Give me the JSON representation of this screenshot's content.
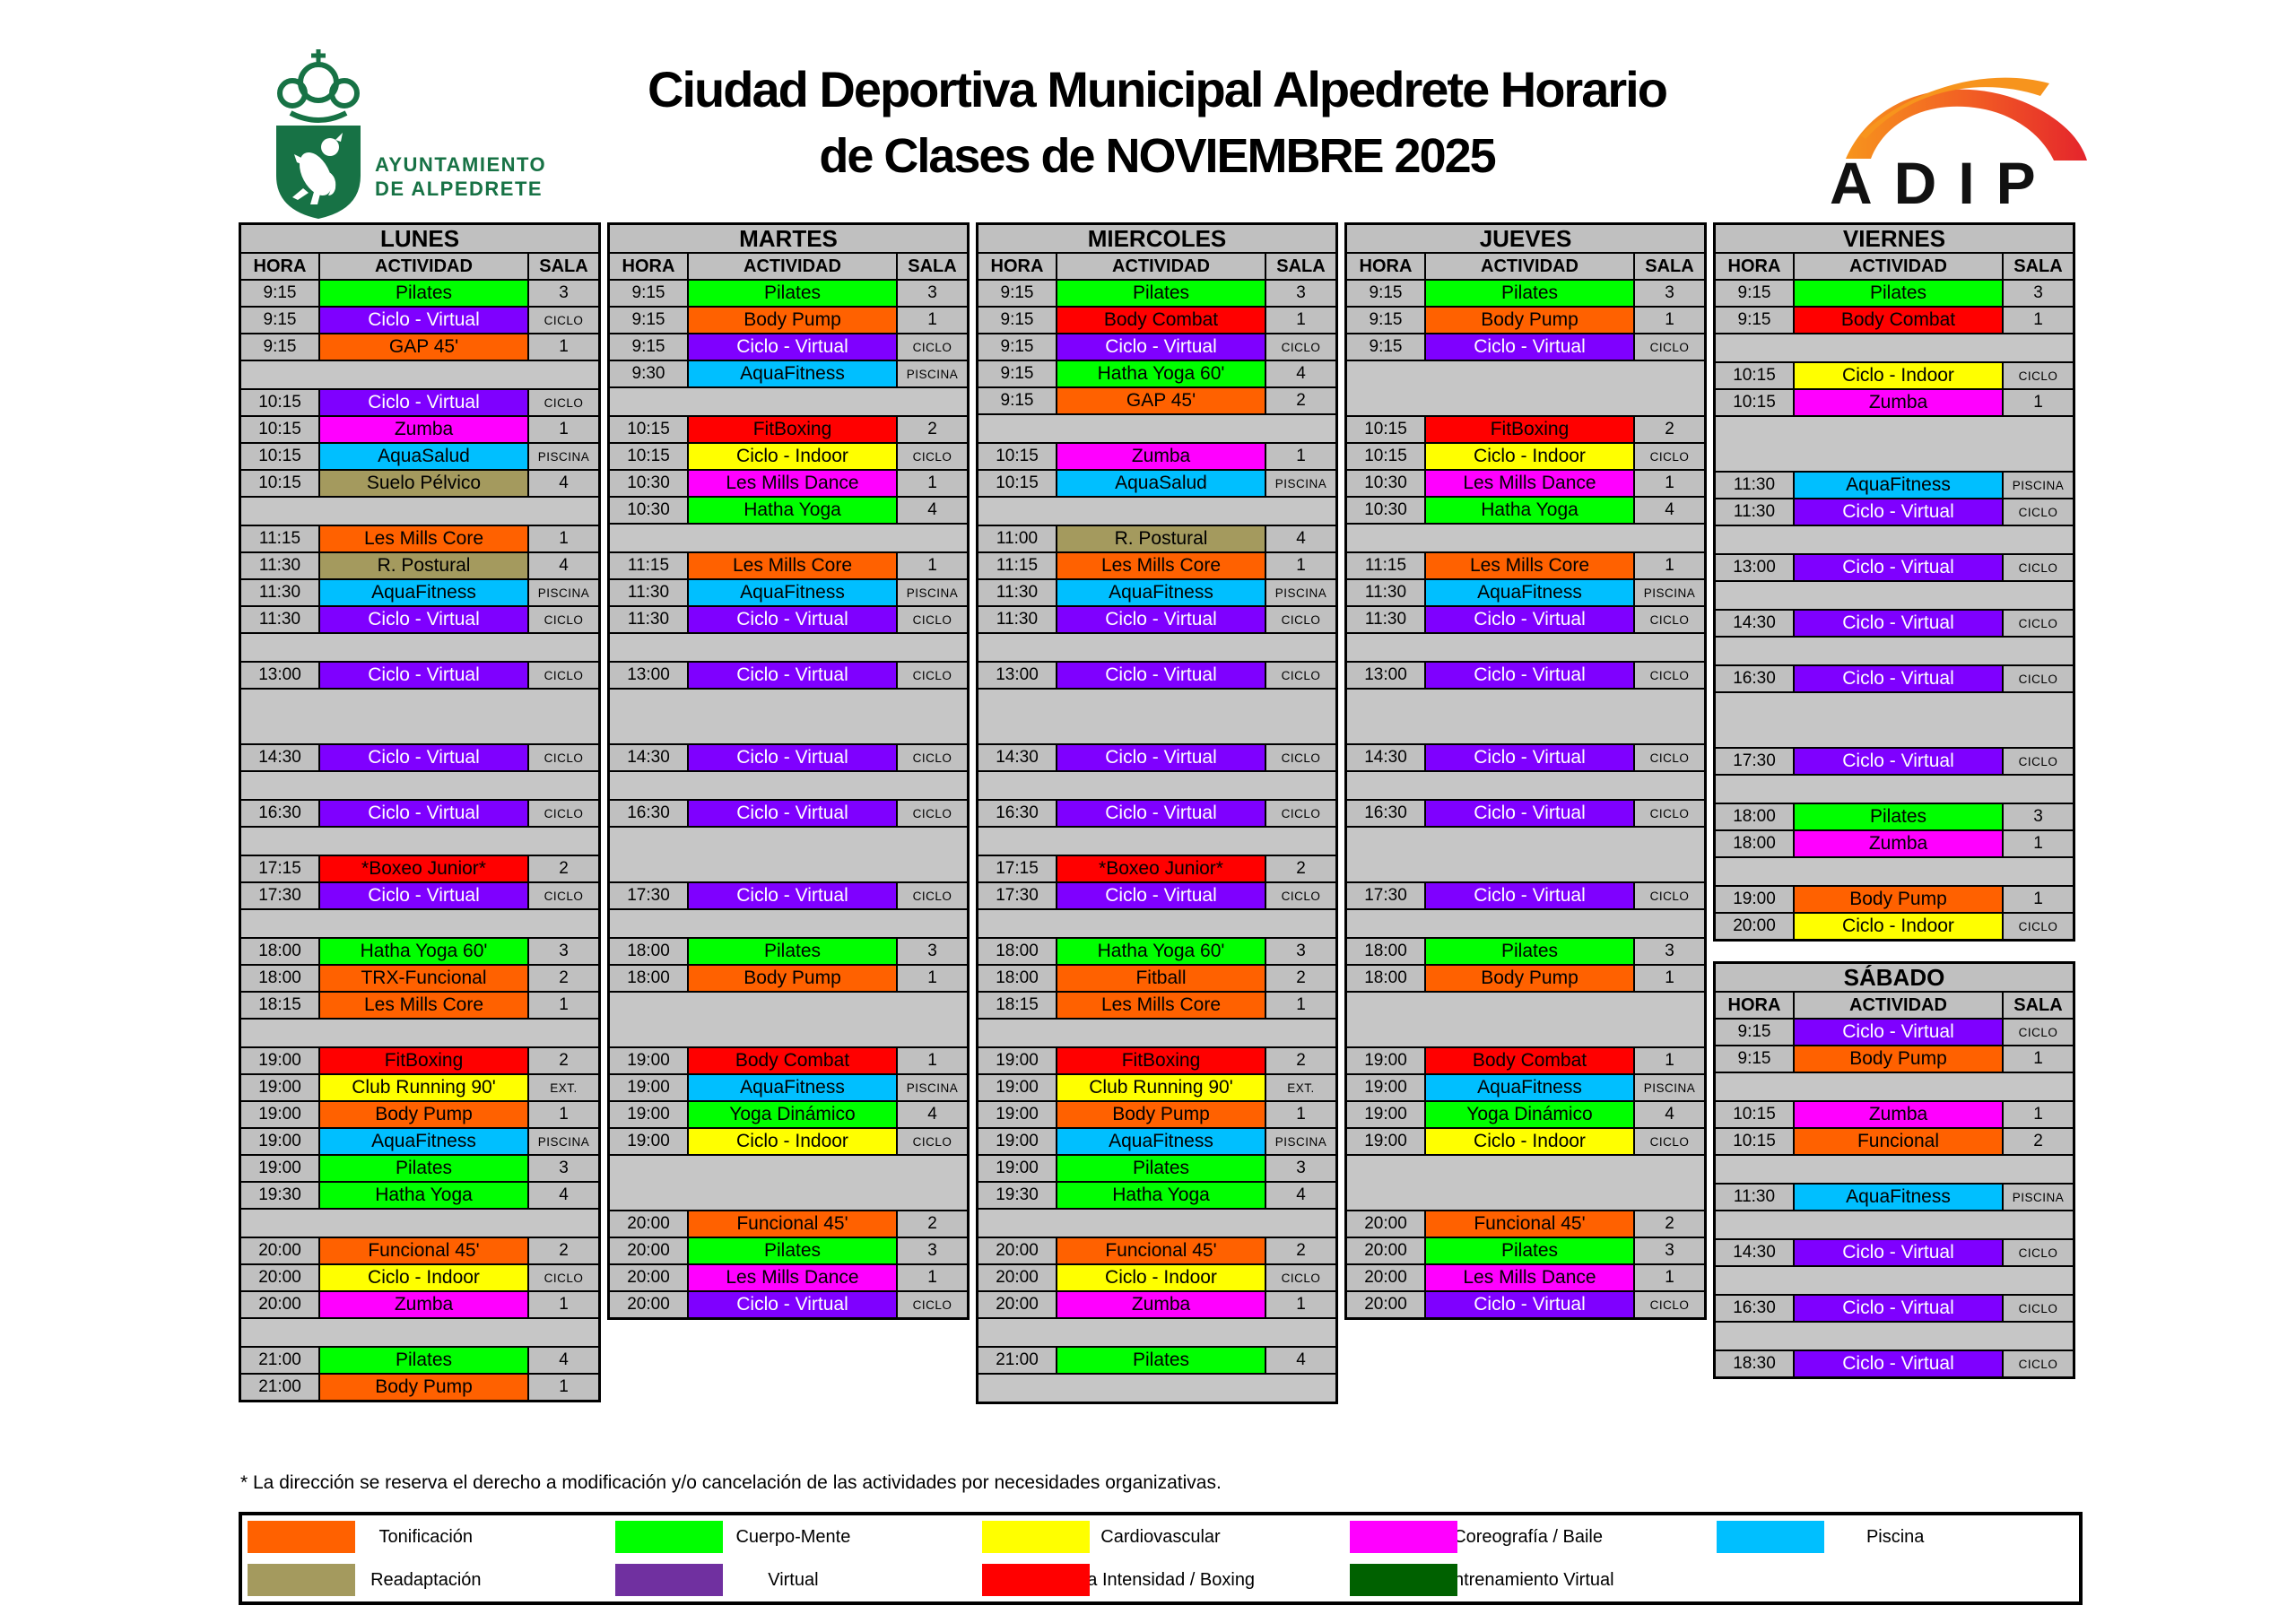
{
  "header": {
    "title_line1": "Ciudad Deportiva Municipal Alpedrete Horario",
    "title_line2": "de Clases de NOVIEMBRE 2025",
    "municipality_line1": "AYUNTAMIENTO",
    "municipality_line2": "DE ALPEDRETE",
    "adip_label": "ADIP"
  },
  "columns": {
    "hora": "HORA",
    "actividad": "ACTIVIDAD",
    "sala": "SALA"
  },
  "colors": {
    "green": "#00FF00",
    "orange": "#FF6100",
    "red": "#FF0000",
    "yellow": "#FFFF00",
    "magenta": "#FF00FF",
    "cyan": "#00BFFF",
    "purple": "#7F00FF",
    "khaki": "#A49A5E",
    "cell_gray": "#C0C0C0",
    "brand_green": "#177245",
    "legend_purple": "#7030A0",
    "legend_darkgreen": "#006100"
  },
  "days": [
    {
      "name": "LUNES",
      "rows": [
        {
          "t": "9:15",
          "a": "Pilates",
          "s": "3",
          "c": "green"
        },
        {
          "t": "9:15",
          "a": "Ciclo - Virtual",
          "s": "CICLO",
          "c": "purple"
        },
        {
          "t": "9:15",
          "a": "GAP 45'",
          "s": "1",
          "c": "orange"
        },
        {
          "g": 1
        },
        {
          "t": "10:15",
          "a": "Ciclo - Virtual",
          "s": "CICLO",
          "c": "purple"
        },
        {
          "t": "10:15",
          "a": "Zumba",
          "s": "1",
          "c": "magenta"
        },
        {
          "t": "10:15",
          "a": "AquaSalud",
          "s": "PISCINA",
          "c": "cyan"
        },
        {
          "t": "10:15",
          "a": "Suelo Pélvico",
          "s": "4",
          "c": "khaki"
        },
        {
          "g": 1
        },
        {
          "t": "11:15",
          "a": "Les Mills Core",
          "s": "1",
          "c": "orange"
        },
        {
          "t": "11:30",
          "a": "R. Postural",
          "s": "4",
          "c": "khaki"
        },
        {
          "t": "11:30",
          "a": "AquaFitness",
          "s": "PISCINA",
          "c": "cyan"
        },
        {
          "t": "11:30",
          "a": "Ciclo - Virtual",
          "s": "CICLO",
          "c": "purple"
        },
        {
          "g": 1
        },
        {
          "t": "13:00",
          "a": "Ciclo - Virtual",
          "s": "CICLO",
          "c": "purple"
        },
        {
          "g": 2
        },
        {
          "t": "14:30",
          "a": "Ciclo - Virtual",
          "s": "CICLO",
          "c": "purple"
        },
        {
          "g": 1
        },
        {
          "t": "16:30",
          "a": "Ciclo - Virtual",
          "s": "CICLO",
          "c": "purple"
        },
        {
          "g": 1
        },
        {
          "t": "17:15",
          "a": "*Boxeo Junior*",
          "s": "2",
          "c": "red"
        },
        {
          "t": "17:30",
          "a": "Ciclo - Virtual",
          "s": "CICLO",
          "c": "purple"
        },
        {
          "g": 1
        },
        {
          "t": "18:00",
          "a": "Hatha Yoga 60'",
          "s": "3",
          "c": "green"
        },
        {
          "t": "18:00",
          "a": "TRX-Funcional",
          "s": "2",
          "c": "orange"
        },
        {
          "t": "18:15",
          "a": "Les Mills Core",
          "s": "1",
          "c": "orange"
        },
        {
          "g": 1
        },
        {
          "t": "19:00",
          "a": "FitBoxing",
          "s": "2",
          "c": "red"
        },
        {
          "t": "19:00",
          "a": "Club Running 90'",
          "s": "EXT.",
          "c": "yellow"
        },
        {
          "t": "19:00",
          "a": "Body Pump",
          "s": "1",
          "c": "orange"
        },
        {
          "t": "19:00",
          "a": "AquaFitness",
          "s": "PISCINA",
          "c": "cyan"
        },
        {
          "t": "19:00",
          "a": "Pilates",
          "s": "3",
          "c": "green"
        },
        {
          "t": "19:30",
          "a": "Hatha Yoga",
          "s": "4",
          "c": "green"
        },
        {
          "g": 1
        },
        {
          "t": "20:00",
          "a": "Funcional 45'",
          "s": "2",
          "c": "orange"
        },
        {
          "t": "20:00",
          "a": "Ciclo - Indoor",
          "s": "CICLO",
          "c": "yellow"
        },
        {
          "t": "20:00",
          "a": "Zumba",
          "s": "1",
          "c": "magenta"
        },
        {
          "g": 1
        },
        {
          "t": "21:00",
          "a": "Pilates",
          "s": "4",
          "c": "green"
        },
        {
          "t": "21:00",
          "a": "Body Pump",
          "s": "1",
          "c": "orange"
        }
      ]
    },
    {
      "name": "MARTES",
      "rows": [
        {
          "t": "9:15",
          "a": "Pilates",
          "s": "3",
          "c": "green"
        },
        {
          "t": "9:15",
          "a": "Body Pump",
          "s": "1",
          "c": "orange"
        },
        {
          "t": "9:15",
          "a": "Ciclo - Virtual",
          "s": "CICLO",
          "c": "purple"
        },
        {
          "t": "9:30",
          "a": "AquaFitness",
          "s": "PISCINA",
          "c": "cyan"
        },
        {
          "g": 1
        },
        {
          "t": "10:15",
          "a": "FitBoxing",
          "s": "2",
          "c": "red"
        },
        {
          "t": "10:15",
          "a": "Ciclo - Indoor",
          "s": "CICLO",
          "c": "yellow"
        },
        {
          "t": "10:30",
          "a": "Les Mills Dance",
          "s": "1",
          "c": "magenta"
        },
        {
          "t": "10:30",
          "a": "Hatha Yoga",
          "s": "4",
          "c": "green"
        },
        {
          "g": 1
        },
        {
          "t": "11:15",
          "a": "Les Mills Core",
          "s": "1",
          "c": "orange"
        },
        {
          "t": "11:30",
          "a": "AquaFitness",
          "s": "PISCINA",
          "c": "cyan"
        },
        {
          "t": "11:30",
          "a": "Ciclo - Virtual",
          "s": "CICLO",
          "c": "purple"
        },
        {
          "g": 1
        },
        {
          "t": "13:00",
          "a": "Ciclo - Virtual",
          "s": "CICLO",
          "c": "purple"
        },
        {
          "g": 2
        },
        {
          "t": "14:30",
          "a": "Ciclo - Virtual",
          "s": "CICLO",
          "c": "purple"
        },
        {
          "g": 1
        },
        {
          "t": "16:30",
          "a": "Ciclo - Virtual",
          "s": "CICLO",
          "c": "purple"
        },
        {
          "g": 2
        },
        {
          "t": "17:30",
          "a": "Ciclo - Virtual",
          "s": "CICLO",
          "c": "purple"
        },
        {
          "g": 1
        },
        {
          "t": "18:00",
          "a": "Pilates",
          "s": "3",
          "c": "green"
        },
        {
          "t": "18:00",
          "a": "Body Pump",
          "s": "1",
          "c": "orange"
        },
        {
          "g": 2
        },
        {
          "t": "19:00",
          "a": "Body Combat",
          "s": "1",
          "c": "red"
        },
        {
          "t": "19:00",
          "a": "AquaFitness",
          "s": "PISCINA",
          "c": "cyan"
        },
        {
          "t": "19:00",
          "a": "Yoga Dinámico",
          "s": "4",
          "c": "green"
        },
        {
          "t": "19:00",
          "a": "Ciclo - Indoor",
          "s": "CICLO",
          "c": "yellow"
        },
        {
          "g": 2
        },
        {
          "t": "20:00",
          "a": "Funcional 45'",
          "s": "2",
          "c": "orange"
        },
        {
          "t": "20:00",
          "a": "Pilates",
          "s": "3",
          "c": "green"
        },
        {
          "t": "20:00",
          "a": "Les Mills Dance",
          "s": "1",
          "c": "magenta"
        },
        {
          "t": "20:00",
          "a": "Ciclo - Virtual",
          "s": "CICLO",
          "c": "purple"
        }
      ]
    },
    {
      "name": "MIERCOLES",
      "rows": [
        {
          "t": "9:15",
          "a": "Pilates",
          "s": "3",
          "c": "green"
        },
        {
          "t": "9:15",
          "a": "Body Combat",
          "s": "1",
          "c": "red"
        },
        {
          "t": "9:15",
          "a": "Ciclo - Virtual",
          "s": "CICLO",
          "c": "purple"
        },
        {
          "t": "9:15",
          "a": "Hatha Yoga 60'",
          "s": "4",
          "c": "green"
        },
        {
          "t": "9:15",
          "a": "GAP 45'",
          "s": "2",
          "c": "orange"
        },
        {
          "g": 1
        },
        {
          "t": "10:15",
          "a": "Zumba",
          "s": "1",
          "c": "magenta"
        },
        {
          "t": "10:15",
          "a": "AquaSalud",
          "s": "PISCINA",
          "c": "cyan"
        },
        {
          "g": 1
        },
        {
          "t": "11:00",
          "a": "R. Postural",
          "s": "4",
          "c": "khaki"
        },
        {
          "t": "11:15",
          "a": "Les Mills Core",
          "s": "1",
          "c": "orange"
        },
        {
          "t": "11:30",
          "a": "AquaFitness",
          "s": "PISCINA",
          "c": "cyan"
        },
        {
          "t": "11:30",
          "a": "Ciclo - Virtual",
          "s": "CICLO",
          "c": "purple"
        },
        {
          "g": 1
        },
        {
          "t": "13:00",
          "a": "Ciclo - Virtual",
          "s": "CICLO",
          "c": "purple"
        },
        {
          "g": 2
        },
        {
          "t": "14:30",
          "a": "Ciclo - Virtual",
          "s": "CICLO",
          "c": "purple"
        },
        {
          "g": 1
        },
        {
          "t": "16:30",
          "a": "Ciclo - Virtual",
          "s": "CICLO",
          "c": "purple"
        },
        {
          "g": 1
        },
        {
          "t": "17:15",
          "a": "*Boxeo Junior*",
          "s": "2",
          "c": "red"
        },
        {
          "t": "17:30",
          "a": "Ciclo - Virtual",
          "s": "CICLO",
          "c": "purple"
        },
        {
          "g": 1
        },
        {
          "t": "18:00",
          "a": "Hatha Yoga 60'",
          "s": "3",
          "c": "green"
        },
        {
          "t": "18:00",
          "a": "Fitball",
          "s": "2",
          "c": "orange"
        },
        {
          "t": "18:15",
          "a": "Les Mills Core",
          "s": "1",
          "c": "orange"
        },
        {
          "g": 1
        },
        {
          "t": "19:00",
          "a": "FitBoxing",
          "s": "2",
          "c": "red"
        },
        {
          "t": "19:00",
          "a": "Club Running 90'",
          "s": "EXT.",
          "c": "yellow"
        },
        {
          "t": "19:00",
          "a": "Body Pump",
          "s": "1",
          "c": "orange"
        },
        {
          "t": "19:00",
          "a": "AquaFitness",
          "s": "PISCINA",
          "c": "cyan"
        },
        {
          "t": "19:00",
          "a": "Pilates",
          "s": "3",
          "c": "green"
        },
        {
          "t": "19:30",
          "a": "Hatha Yoga",
          "s": "4",
          "c": "green"
        },
        {
          "g": 1
        },
        {
          "t": "20:00",
          "a": "Funcional 45'",
          "s": "2",
          "c": "orange"
        },
        {
          "t": "20:00",
          "a": "Ciclo - Indoor",
          "s": "CICLO",
          "c": "yellow"
        },
        {
          "t": "20:00",
          "a": "Zumba",
          "s": "1",
          "c": "magenta"
        },
        {
          "g": 1
        },
        {
          "t": "21:00",
          "a": "Pilates",
          "s": "4",
          "c": "green"
        },
        {
          "g": 1
        }
      ]
    },
    {
      "name": "JUEVES",
      "rows": [
        {
          "t": "9:15",
          "a": "Pilates",
          "s": "3",
          "c": "green"
        },
        {
          "t": "9:15",
          "a": "Body Pump",
          "s": "1",
          "c": "orange"
        },
        {
          "t": "9:15",
          "a": "Ciclo - Virtual",
          "s": "CICLO",
          "c": "purple"
        },
        {
          "g": 2
        },
        {
          "t": "10:15",
          "a": "FitBoxing",
          "s": "2",
          "c": "red"
        },
        {
          "t": "10:15",
          "a": "Ciclo - Indoor",
          "s": "CICLO",
          "c": "yellow"
        },
        {
          "t": "10:30",
          "a": "Les Mills Dance",
          "s": "1",
          "c": "magenta"
        },
        {
          "t": "10:30",
          "a": "Hatha Yoga",
          "s": "4",
          "c": "green"
        },
        {
          "g": 1
        },
        {
          "t": "11:15",
          "a": "Les Mills Core",
          "s": "1",
          "c": "orange"
        },
        {
          "t": "11:30",
          "a": "AquaFitness",
          "s": "PISCINA",
          "c": "cyan"
        },
        {
          "t": "11:30",
          "a": "Ciclo - Virtual",
          "s": "CICLO",
          "c": "purple"
        },
        {
          "g": 1
        },
        {
          "t": "13:00",
          "a": "Ciclo - Virtual",
          "s": "CICLO",
          "c": "purple"
        },
        {
          "g": 2
        },
        {
          "t": "14:30",
          "a": "Ciclo - Virtual",
          "s": "CICLO",
          "c": "purple"
        },
        {
          "g": 1
        },
        {
          "t": "16:30",
          "a": "Ciclo - Virtual",
          "s": "CICLO",
          "c": "purple"
        },
        {
          "g": 2
        },
        {
          "t": "17:30",
          "a": "Ciclo - Virtual",
          "s": "CICLO",
          "c": "purple"
        },
        {
          "g": 1
        },
        {
          "t": "18:00",
          "a": "Pilates",
          "s": "3",
          "c": "green"
        },
        {
          "t": "18:00",
          "a": "Body Pump",
          "s": "1",
          "c": "orange"
        },
        {
          "g": 2
        },
        {
          "t": "19:00",
          "a": "Body Combat",
          "s": "1",
          "c": "red"
        },
        {
          "t": "19:00",
          "a": "AquaFitness",
          "s": "PISCINA",
          "c": "cyan"
        },
        {
          "t": "19:00",
          "a": "Yoga Dinámico",
          "s": "4",
          "c": "green"
        },
        {
          "t": "19:00",
          "a": "Ciclo - Indoor",
          "s": "CICLO",
          "c": "yellow"
        },
        {
          "g": 2
        },
        {
          "t": "20:00",
          "a": "Funcional 45'",
          "s": "2",
          "c": "orange"
        },
        {
          "t": "20:00",
          "a": "Pilates",
          "s": "3",
          "c": "green"
        },
        {
          "t": "20:00",
          "a": "Les Mills Dance",
          "s": "1",
          "c": "magenta"
        },
        {
          "t": "20:00",
          "a": "Ciclo - Virtual",
          "s": "CICLO",
          "c": "purple"
        }
      ]
    },
    {
      "name": "VIERNES",
      "rows": [
        {
          "t": "9:15",
          "a": "Pilates",
          "s": "3",
          "c": "green"
        },
        {
          "t": "9:15",
          "a": "Body Combat",
          "s": "1",
          "c": "red"
        },
        {
          "g": 1
        },
        {
          "t": "10:15",
          "a": "Ciclo - Indoor",
          "s": "CICLO",
          "c": "yellow"
        },
        {
          "t": "10:15",
          "a": "Zumba",
          "s": "1",
          "c": "magenta"
        },
        {
          "g": 2
        },
        {
          "t": "11:30",
          "a": "AquaFitness",
          "s": "PISCINA",
          "c": "cyan"
        },
        {
          "t": "11:30",
          "a": "Ciclo - Virtual",
          "s": "CICLO",
          "c": "purple"
        },
        {
          "g": 1
        },
        {
          "t": "13:00",
          "a": "Ciclo - Virtual",
          "s": "CICLO",
          "c": "purple"
        },
        {
          "g": 1
        },
        {
          "t": "14:30",
          "a": "Ciclo - Virtual",
          "s": "CICLO",
          "c": "purple"
        },
        {
          "g": 1
        },
        {
          "t": "16:30",
          "a": "Ciclo - Virtual",
          "s": "CICLO",
          "c": "purple"
        },
        {
          "g": 2
        },
        {
          "t": "17:30",
          "a": "Ciclo - Virtual",
          "s": "CICLO",
          "c": "purple"
        },
        {
          "g": 1
        },
        {
          "t": "18:00",
          "a": "Pilates",
          "s": "3",
          "c": "green"
        },
        {
          "t": "18:00",
          "a": "Zumba",
          "s": "1",
          "c": "magenta"
        },
        {
          "g": 1
        },
        {
          "t": "19:00",
          "a": "Body Pump",
          "s": "1",
          "c": "orange"
        },
        {
          "t": "20:00",
          "a": "Ciclo - Indoor",
          "s": "CICLO",
          "c": "yellow"
        }
      ]
    }
  ],
  "saturday": {
    "name": "SÁBADO",
    "rows": [
      {
        "t": "9:15",
        "a": "Ciclo - Virtual",
        "s": "CICLO",
        "c": "purple"
      },
      {
        "t": "9:15",
        "a": "Body Pump",
        "s": "1",
        "c": "orange"
      },
      {
        "g": 1
      },
      {
        "t": "10:15",
        "a": "Zumba",
        "s": "1",
        "c": "magenta"
      },
      {
        "t": "10:15",
        "a": "Funcional",
        "s": "2",
        "c": "orange"
      },
      {
        "g": 1
      },
      {
        "t": "11:30",
        "a": "AquaFitness",
        "s": "PISCINA",
        "c": "cyan"
      },
      {
        "g": 1
      },
      {
        "t": "14:30",
        "a": "Ciclo - Virtual",
        "s": "CICLO",
        "c": "purple"
      },
      {
        "g": 1
      },
      {
        "t": "16:30",
        "a": "Ciclo - Virtual",
        "s": "CICLO",
        "c": "purple"
      },
      {
        "g": 1
      },
      {
        "t": "18:30",
        "a": "Ciclo - Virtual",
        "s": "CICLO",
        "c": "purple"
      }
    ]
  },
  "footnote": "* La dirección se reserva el derecho a modificación y/o cancelación de las actividades por necesidades organizativas.",
  "legend": {
    "row1": [
      {
        "label": "Tonificación",
        "color": "#FF6100"
      },
      {
        "label": "Cuerpo-Mente",
        "color": "#00FF00"
      },
      {
        "label": "Cardiovascular",
        "color": "#FFFF00"
      },
      {
        "label": "Coreografía / Baile",
        "color": "#FF00FF"
      },
      {
        "label": "Piscina",
        "color": "#00BFFF"
      }
    ],
    "row2": [
      {
        "label": "Readaptación",
        "color": "#A49A5E"
      },
      {
        "label": "Virtual",
        "color": "#7030A0"
      },
      {
        "label": "Alta Intensidad / Boxing",
        "color": "#FF0000"
      },
      {
        "label": "Entrenamiento Virtual",
        "color": "#006100"
      }
    ]
  }
}
